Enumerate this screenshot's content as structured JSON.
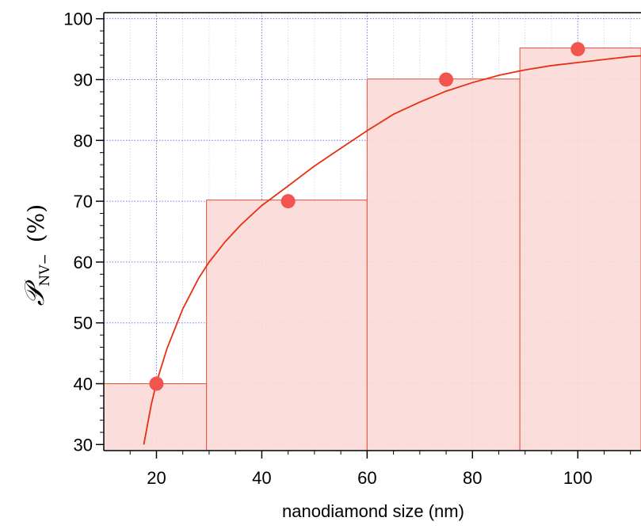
{
  "chart_data": {
    "type": "bar",
    "xlabel": "nanodiamond size (nm)",
    "ylabel": {
      "symbol": "𝒫",
      "subscript": "NV−",
      "unit": "(%)"
    },
    "xlim": [
      10,
      112
    ],
    "ylim": [
      29,
      101
    ],
    "x_ticks": [
      20,
      40,
      60,
      80,
      100
    ],
    "y_ticks": [
      30,
      40,
      50,
      60,
      70,
      80,
      90,
      100
    ],
    "grid": true,
    "bars": [
      {
        "x_start": 10,
        "x_end": 29.5,
        "value": 40
      },
      {
        "x_start": 29.5,
        "x_end": 60,
        "value": 70.2
      },
      {
        "x_start": 60,
        "x_end": 89,
        "value": 90.1
      },
      {
        "x_start": 89,
        "x_end": 112,
        "value": 95.2
      }
    ],
    "series": [
      {
        "type": "scatter",
        "x": [
          20,
          45,
          75,
          100
        ],
        "y": [
          40,
          70,
          90,
          95
        ]
      },
      {
        "type": "line",
        "x": [
          17.6,
          19,
          20,
          22,
          25,
          28,
          30,
          33,
          36,
          40,
          45,
          50,
          55,
          60,
          65,
          70,
          75,
          80,
          85,
          90,
          95,
          100,
          105,
          110,
          112
        ],
        "y": [
          30,
          36.5,
          40.2,
          45.8,
          52.3,
          57.3,
          60,
          63.3,
          66.1,
          69.3,
          72.5,
          75.8,
          78.7,
          81.6,
          84.3,
          86.3,
          88.1,
          89.5,
          90.7,
          91.6,
          92.3,
          92.8,
          93.3,
          93.8,
          93.9
        ]
      }
    ],
    "colors": {
      "bar_fill": "#fbdad8",
      "bar_stroke": "#e8503a",
      "point": "#f2554d",
      "curve": "#e8300e",
      "grid": "#6b6bdf",
      "axis": "#000000"
    }
  }
}
